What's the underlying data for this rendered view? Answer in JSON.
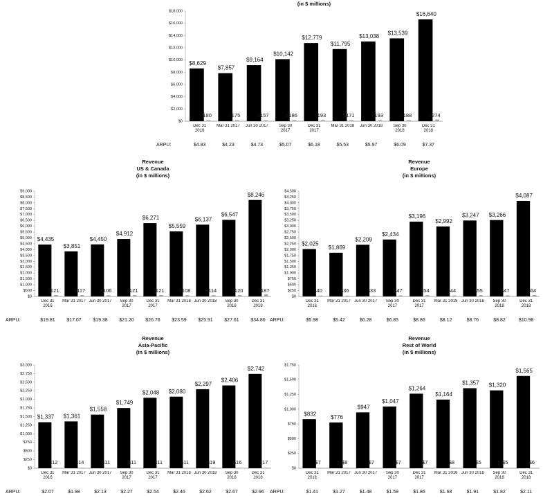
{
  "chart_data": [
    {
      "type": "bar",
      "title": "(in $ millions)",
      "categories": [
        "Dec 31 2016",
        "Mar 31 2017",
        "Jun 30 2017",
        "Sep 30 2017",
        "Dec 31 2017",
        "Mar 31 2018",
        "Jun 30 2018",
        "Sep 30 2018",
        "Dec 31 2018"
      ],
      "series": [
        {
          "color": "#000000",
          "values": [
            8629,
            7857,
            9164,
            10142,
            12779,
            11795,
            13038,
            13539,
            16640
          ],
          "value_labels": [
            "$8,629",
            "$7,857",
            "$9,164",
            "$10,142",
            "$12,779",
            "$11,795",
            "$13,038",
            "$13,539",
            "$16,640"
          ]
        },
        {
          "color": "#a6a6a6",
          "values": [
            180,
            175,
            157,
            186,
            193,
            171,
            193,
            188,
            274
          ],
          "value_labels": [
            "$180",
            "$175",
            "$157",
            "$186",
            "$193",
            "$171",
            "$193",
            "$188",
            "$274"
          ]
        }
      ],
      "ylim": [
        0,
        18000
      ],
      "yticks": [
        {
          "value": 0,
          "label": "$0"
        },
        {
          "value": 2000,
          "label": "$2,000"
        },
        {
          "value": 4000,
          "label": "$4,000"
        },
        {
          "value": 6000,
          "label": "$6,000"
        },
        {
          "value": 8000,
          "label": "$8,000"
        },
        {
          "value": 10000,
          "label": "$10,000"
        },
        {
          "value": 12000,
          "label": "$12,000"
        },
        {
          "value": 14000,
          "label": "$14,000"
        },
        {
          "value": 16000,
          "label": "$16,000"
        },
        {
          "value": 18000,
          "label": "$18,000"
        }
      ],
      "arpu_label": "ARPU:",
      "arpu": [
        "$4.83",
        "$4.23",
        "$4.73",
        "$5.07",
        "$6.18",
        "$5.53",
        "$5.97",
        "$6.09",
        "$7.37"
      ]
    },
    {
      "type": "bar",
      "title": "Revenue",
      "subtitle": "US & Canada",
      "unit_note": "(in $ millions)",
      "categories": [
        "Dec 31 2016",
        "Mar 31 2017",
        "Jun 30 2017",
        "Sep 30 2017",
        "Dec 31 2017",
        "Mar 31 2018",
        "Jun 30 2018",
        "Sep 30 2018",
        "Dec 31 2018"
      ],
      "series": [
        {
          "color": "#000000",
          "values": [
            4435,
            3851,
            4450,
            4912,
            6271,
            5559,
            6137,
            6547,
            8246
          ],
          "value_labels": [
            "$4,435",
            "$3,851",
            "$4,450",
            "$4,912",
            "$6,271",
            "$5,559",
            "$6,137",
            "$6,547",
            "$8,246"
          ]
        },
        {
          "color": "#a6a6a6",
          "values": [
            121,
            117,
            106,
            121,
            121,
            108,
            114,
            120,
            187
          ],
          "value_labels": [
            "$121",
            "$117",
            "$106",
            "$121",
            "$121",
            "$108",
            "$114",
            "$120",
            "$187"
          ]
        }
      ],
      "ylim": [
        0,
        9000
      ],
      "yticks": [
        {
          "value": 0,
          "label": "$0"
        },
        {
          "value": 500,
          "label": "$500"
        },
        {
          "value": 1000,
          "label": "$1,000"
        },
        {
          "value": 1500,
          "label": "$1,500"
        },
        {
          "value": 2000,
          "label": "$2,000"
        },
        {
          "value": 2500,
          "label": "$2,500"
        },
        {
          "value": 3000,
          "label": "$3,000"
        },
        {
          "value": 3500,
          "label": "$3,500"
        },
        {
          "value": 4000,
          "label": "$4,000"
        },
        {
          "value": 4500,
          "label": "$4,500"
        },
        {
          "value": 5000,
          "label": "$5,000"
        },
        {
          "value": 5500,
          "label": "$5,500"
        },
        {
          "value": 6000,
          "label": "$6,000"
        },
        {
          "value": 6500,
          "label": "$6,500"
        },
        {
          "value": 7000,
          "label": "$7,000"
        },
        {
          "value": 7500,
          "label": "$7,500"
        },
        {
          "value": 8000,
          "label": "$8,000"
        },
        {
          "value": 8500,
          "label": "$8,500"
        },
        {
          "value": 9000,
          "label": "$9,000"
        }
      ],
      "arpu_label": "ARPU:",
      "arpu": [
        "$19.81",
        "$17.07",
        "$19.38",
        "$21.20",
        "$26.76",
        "$23.59",
        "$25.91",
        "$27.61",
        "$34.86"
      ]
    },
    {
      "type": "bar",
      "title": "Revenue",
      "subtitle": "Europe",
      "unit_note": "(in $ millions)",
      "categories": [
        "Dec 31 2016",
        "Mar 31 2017",
        "Jun 30 2017",
        "Sep 30 2017",
        "Dec 31 2017",
        "Mar 31 2018",
        "Jun 30 2018",
        "Sep 30 2018",
        "Dec 31 2018"
      ],
      "series": [
        {
          "color": "#000000",
          "values": [
            2025,
            1869,
            2209,
            2434,
            3196,
            2992,
            3247,
            3266,
            4087
          ],
          "value_labels": [
            "$2,025",
            "$1,869",
            "$2,209",
            "$2,434",
            "$3,196",
            "$2,992",
            "$3,247",
            "$3,266",
            "$4,087"
          ]
        },
        {
          "color": "#a6a6a6",
          "values": [
            40,
            36,
            33,
            47,
            54,
            44,
            55,
            47,
            64
          ],
          "value_labels": [
            "$40",
            "$36",
            "$33",
            "$47",
            "$54",
            "$44",
            "$55",
            "$47",
            "$64"
          ]
        }
      ],
      "ylim": [
        0,
        4500
      ],
      "yticks": [
        {
          "value": 0,
          "label": "$0"
        },
        {
          "value": 250,
          "label": "$250"
        },
        {
          "value": 500,
          "label": "$500"
        },
        {
          "value": 750,
          "label": "$750"
        },
        {
          "value": 1000,
          "label": "$1,000"
        },
        {
          "value": 1250,
          "label": "$1,250"
        },
        {
          "value": 1500,
          "label": "$1,500"
        },
        {
          "value": 1750,
          "label": "$1,750"
        },
        {
          "value": 2000,
          "label": "$2,000"
        },
        {
          "value": 2250,
          "label": "$2,250"
        },
        {
          "value": 2500,
          "label": "$2,500"
        },
        {
          "value": 2750,
          "label": "$2,750"
        },
        {
          "value": 3000,
          "label": "$3,000"
        },
        {
          "value": 3250,
          "label": "$3,250"
        },
        {
          "value": 3500,
          "label": "$3,500"
        },
        {
          "value": 3750,
          "label": "$3,750"
        },
        {
          "value": 4000,
          "label": "$4,000"
        },
        {
          "value": 4250,
          "label": "$4,250"
        },
        {
          "value": 4500,
          "label": "$4,500"
        }
      ],
      "arpu_label": "ARPU:",
      "arpu": [
        "$5.98",
        "$5.42",
        "$6.28",
        "$6.85",
        "$8.86",
        "$8.12",
        "$8.76",
        "$8.82",
        "$10.98"
      ]
    },
    {
      "type": "bar",
      "title": "Revenue",
      "subtitle": "Asia-Pacific",
      "unit_note": "(in $ millions)",
      "categories": [
        "Dec 31 2016",
        "Mar 31 2017",
        "Jun 30 2017",
        "Sep 30 2017",
        "Dec 31 2017",
        "Mar 31 2018",
        "Jun 30 2018",
        "Sep 30 2018",
        "Dec 31 2018"
      ],
      "series": [
        {
          "color": "#000000",
          "values": [
            1337,
            1361,
            1558,
            1749,
            2048,
            2080,
            2297,
            2406,
            2742
          ],
          "value_labels": [
            "$1,337",
            "$1,361",
            "$1,558",
            "$1,749",
            "$2,048",
            "$2,080",
            "$2,297",
            "$2,406",
            "$2,742"
          ]
        },
        {
          "color": "#a6a6a6",
          "values": [
            12,
            14,
            11,
            11,
            11,
            11,
            19,
            16,
            17
          ],
          "value_labels": [
            "$12",
            "$14",
            "$11",
            "$11",
            "$11",
            "$11",
            "$19",
            "$16",
            "$17"
          ]
        }
      ],
      "ylim": [
        0,
        3000
      ],
      "yticks": [
        {
          "value": 0,
          "label": "$0"
        },
        {
          "value": 250,
          "label": "$250"
        },
        {
          "value": 500,
          "label": "$500"
        },
        {
          "value": 750,
          "label": "$750"
        },
        {
          "value": 1000,
          "label": "$1,000"
        },
        {
          "value": 1250,
          "label": "$1,250"
        },
        {
          "value": 1500,
          "label": "$1,500"
        },
        {
          "value": 1750,
          "label": "$1,750"
        },
        {
          "value": 2000,
          "label": "$2,000"
        },
        {
          "value": 2250,
          "label": "$2,250"
        },
        {
          "value": 2500,
          "label": "$2,500"
        },
        {
          "value": 2750,
          "label": "$2,750"
        },
        {
          "value": 3000,
          "label": "$3,000"
        }
      ],
      "arpu_label": "ARPU:",
      "arpu": [
        "$2.07",
        "$1.98",
        "$2.13",
        "$2.27",
        "$2.54",
        "$2.46",
        "$2.62",
        "$2.67",
        "$2.96"
      ]
    },
    {
      "type": "bar",
      "title": "Revenue",
      "subtitle": "Rest of World",
      "unit_note": "(in $ millions)",
      "categories": [
        "Dec 31 2016",
        "Mar 31 2017",
        "Jun 30 2017",
        "Sep 30 2017",
        "Dec 31 2017",
        "Mar 31 2018",
        "Jun 30 2018",
        "Sep 30 2018",
        "Dec 31 2018"
      ],
      "series": [
        {
          "color": "#000000",
          "values": [
            832,
            776,
            947,
            1047,
            1264,
            1164,
            1357,
            1320,
            1565
          ],
          "value_labels": [
            "$832",
            "$776",
            "$947",
            "$1,047",
            "$1,264",
            "$1,164",
            "$1,357",
            "$1,320",
            "$1,565"
          ]
        },
        {
          "color": "#a6a6a6",
          "values": [
            7,
            8,
            7,
            7,
            7,
            8,
            5,
            5,
            6
          ],
          "value_labels": [
            "$7",
            "$8",
            "$7",
            "$7",
            "$7",
            "$8",
            "$5",
            "$5",
            "$6"
          ]
        }
      ],
      "ylim": [
        0,
        1750
      ],
      "yticks": [
        {
          "value": 0,
          "label": "$0"
        },
        {
          "value": 250,
          "label": "$250"
        },
        {
          "value": 500,
          "label": "$500"
        },
        {
          "value": 750,
          "label": "$750"
        },
        {
          "value": 1000,
          "label": "$1,000"
        },
        {
          "value": 1250,
          "label": "$1,250"
        },
        {
          "value": 1500,
          "label": "$1,500"
        },
        {
          "value": 1750,
          "label": "$1,750"
        }
      ],
      "arpu_label": "ARPU:",
      "arpu": [
        "$1.41",
        "$1.27",
        "$1.48",
        "$1.59",
        "$1.86",
        "$1.68",
        "$1.91",
        "$1.82",
        "$2.11"
      ]
    }
  ]
}
